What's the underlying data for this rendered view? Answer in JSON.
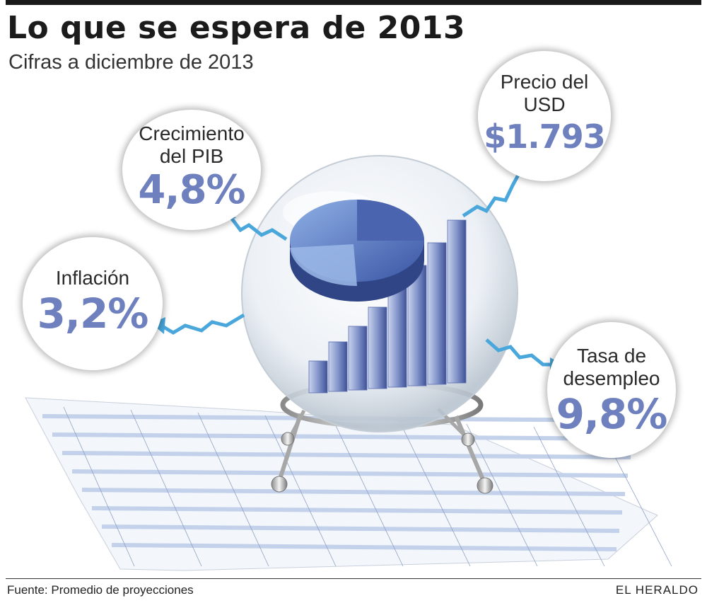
{
  "header": {
    "title": "Lo que se espera de 2013",
    "subtitle": "Cifras a diciembre de 2013"
  },
  "indicators": [
    {
      "label_line1": "Crecimiento",
      "label_line2": "del PIB",
      "value": "4,8%"
    },
    {
      "label_line1": "Precio del",
      "label_line2": "USD",
      "value": "$1.793"
    },
    {
      "label_line1": "Inflación",
      "label_line2": "",
      "value": "3,2%"
    },
    {
      "label_line1": "Tasa de",
      "label_line2": "desempleo",
      "value": "9,8%"
    }
  ],
  "footer": {
    "source": "Fuente: Promedio de proyecciones",
    "brand": "EL HERALDO"
  },
  "colors": {
    "accent_value": "#6f80be",
    "arrow": "#4aa7dc",
    "sheet_stripe": "#c3d2ea",
    "chart_blue": "#5a6fae"
  },
  "icons": [
    "crystal-ball-icon",
    "pie-chart-icon",
    "bar-chart-icon",
    "spreadsheet-icon",
    "zigzag-arrow-icon"
  ]
}
